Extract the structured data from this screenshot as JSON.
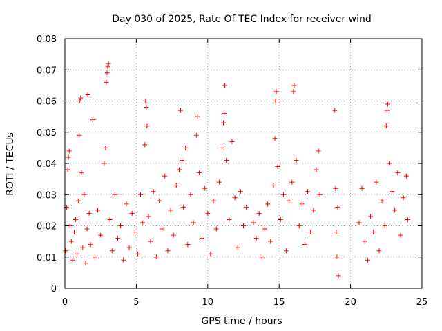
{
  "chart_data": {
    "type": "scatter",
    "title": "Day 030 of 2025, Rate Of TEC Index for receiver wind",
    "xlabel": "GPS time / hours",
    "ylabel": "ROTI / TECUs",
    "xlim": [
      0,
      25
    ],
    "ylim": [
      0,
      0.08
    ],
    "xticks": [
      0,
      5,
      10,
      15,
      20,
      25
    ],
    "yticks": [
      0,
      0.01,
      0.02,
      0.03,
      0.04,
      0.05,
      0.06,
      0.07,
      0.08
    ],
    "grid": true,
    "marker": "+",
    "color": "#ff0000",
    "series": [
      {
        "points": [
          [
            0.05,
            0.012
          ],
          [
            0.12,
            0.026
          ],
          [
            0.2,
            0.038
          ],
          [
            0.25,
            0.042
          ],
          [
            0.3,
            0.044
          ],
          [
            0.35,
            0.02
          ],
          [
            0.45,
            0.015
          ],
          [
            0.55,
            0.009
          ],
          [
            0.65,
            0.018
          ],
          [
            0.75,
            0.022
          ],
          [
            0.85,
            0.011
          ],
          [
            0.95,
            0.028
          ],
          [
            1.0,
            0.049
          ],
          [
            1.05,
            0.06
          ],
          [
            1.1,
            0.061
          ],
          [
            1.15,
            0.037
          ],
          [
            1.25,
            0.013
          ],
          [
            1.35,
            0.03
          ],
          [
            1.45,
            0.008
          ],
          [
            1.55,
            0.019
          ],
          [
            1.6,
            0.062
          ],
          [
            1.7,
            0.024
          ],
          [
            1.8,
            0.014
          ],
          [
            1.95,
            0.054
          ],
          [
            2.1,
            0.01
          ],
          [
            2.3,
            0.025
          ],
          [
            2.5,
            0.017
          ],
          [
            2.75,
            0.04
          ],
          [
            2.85,
            0.045
          ],
          [
            2.9,
            0.066
          ],
          [
            2.95,
            0.069
          ],
          [
            3.0,
            0.071
          ],
          [
            3.05,
            0.072
          ],
          [
            3.15,
            0.022
          ],
          [
            3.3,
            0.012
          ],
          [
            3.5,
            0.03
          ],
          [
            3.7,
            0.016
          ],
          [
            3.9,
            0.02
          ],
          [
            4.1,
            0.009
          ],
          [
            4.3,
            0.027
          ],
          [
            4.5,
            0.013
          ],
          [
            4.7,
            0.024
          ],
          [
            4.9,
            0.018
          ],
          [
            5.1,
            0.011
          ],
          [
            5.3,
            0.03
          ],
          [
            5.45,
            0.021
          ],
          [
            5.6,
            0.046
          ],
          [
            5.65,
            0.06
          ],
          [
            5.7,
            0.058
          ],
          [
            5.75,
            0.052
          ],
          [
            5.85,
            0.023
          ],
          [
            6.0,
            0.015
          ],
          [
            6.2,
            0.031
          ],
          [
            6.4,
            0.01
          ],
          [
            6.6,
            0.028
          ],
          [
            6.8,
            0.019
          ],
          [
            7.0,
            0.036
          ],
          [
            7.2,
            0.012
          ],
          [
            7.4,
            0.025
          ],
          [
            7.6,
            0.017
          ],
          [
            7.8,
            0.033
          ],
          [
            8.0,
            0.038
          ],
          [
            8.1,
            0.057
          ],
          [
            8.2,
            0.041
          ],
          [
            8.3,
            0.026
          ],
          [
            8.45,
            0.045
          ],
          [
            8.6,
            0.014
          ],
          [
            8.8,
            0.03
          ],
          [
            9.0,
            0.021
          ],
          [
            9.2,
            0.049
          ],
          [
            9.3,
            0.055
          ],
          [
            9.4,
            0.037
          ],
          [
            9.6,
            0.016
          ],
          [
            9.8,
            0.032
          ],
          [
            10.0,
            0.024
          ],
          [
            10.2,
            0.011
          ],
          [
            10.4,
            0.028
          ],
          [
            10.6,
            0.019
          ],
          [
            10.8,
            0.034
          ],
          [
            11.0,
            0.045
          ],
          [
            11.1,
            0.053
          ],
          [
            11.15,
            0.056
          ],
          [
            11.2,
            0.065
          ],
          [
            11.3,
            0.041
          ],
          [
            11.5,
            0.022
          ],
          [
            11.7,
            0.047
          ],
          [
            11.9,
            0.029
          ],
          [
            12.1,
            0.013
          ],
          [
            12.3,
            0.031
          ],
          [
            12.5,
            0.02
          ],
          [
            12.7,
            0.026
          ],
          [
            13.2,
            0.021
          ],
          [
            13.4,
            0.016
          ],
          [
            13.6,
            0.024
          ],
          [
            13.8,
            0.01
          ],
          [
            14.0,
            0.019
          ],
          [
            14.2,
            0.027
          ],
          [
            14.4,
            0.015
          ],
          [
            14.6,
            0.033
          ],
          [
            14.7,
            0.048
          ],
          [
            14.75,
            0.06
          ],
          [
            14.8,
            0.063
          ],
          [
            14.9,
            0.039
          ],
          [
            15.1,
            0.022
          ],
          [
            15.3,
            0.03
          ],
          [
            15.5,
            0.012
          ],
          [
            15.7,
            0.028
          ],
          [
            15.9,
            0.034
          ],
          [
            16.0,
            0.063
          ],
          [
            16.05,
            0.065
          ],
          [
            16.2,
            0.041
          ],
          [
            16.4,
            0.02
          ],
          [
            16.6,
            0.027
          ],
          [
            16.8,
            0.014
          ],
          [
            17.0,
            0.031
          ],
          [
            17.2,
            0.018
          ],
          [
            17.4,
            0.025
          ],
          [
            17.6,
            0.038
          ],
          [
            17.75,
            0.044
          ],
          [
            17.85,
            0.03
          ],
          [
            18.9,
            0.057
          ],
          [
            18.95,
            0.032
          ],
          [
            19.0,
            0.018
          ],
          [
            19.05,
            0.01
          ],
          [
            19.1,
            0.026
          ],
          [
            19.15,
            0.004
          ],
          [
            20.6,
            0.021
          ],
          [
            20.8,
            0.032
          ],
          [
            21.0,
            0.015
          ],
          [
            21.2,
            0.009
          ],
          [
            21.4,
            0.023
          ],
          [
            21.6,
            0.018
          ],
          [
            21.8,
            0.034
          ],
          [
            22.0,
            0.012
          ],
          [
            22.2,
            0.028
          ],
          [
            22.4,
            0.02
          ],
          [
            22.5,
            0.052
          ],
          [
            22.55,
            0.057
          ],
          [
            22.6,
            0.059
          ],
          [
            22.7,
            0.04
          ],
          [
            22.9,
            0.031
          ],
          [
            23.1,
            0.025
          ],
          [
            23.3,
            0.037
          ],
          [
            23.5,
            0.017
          ],
          [
            23.7,
            0.029
          ],
          [
            23.9,
            0.036
          ],
          [
            24.0,
            0.022
          ]
        ]
      }
    ]
  }
}
